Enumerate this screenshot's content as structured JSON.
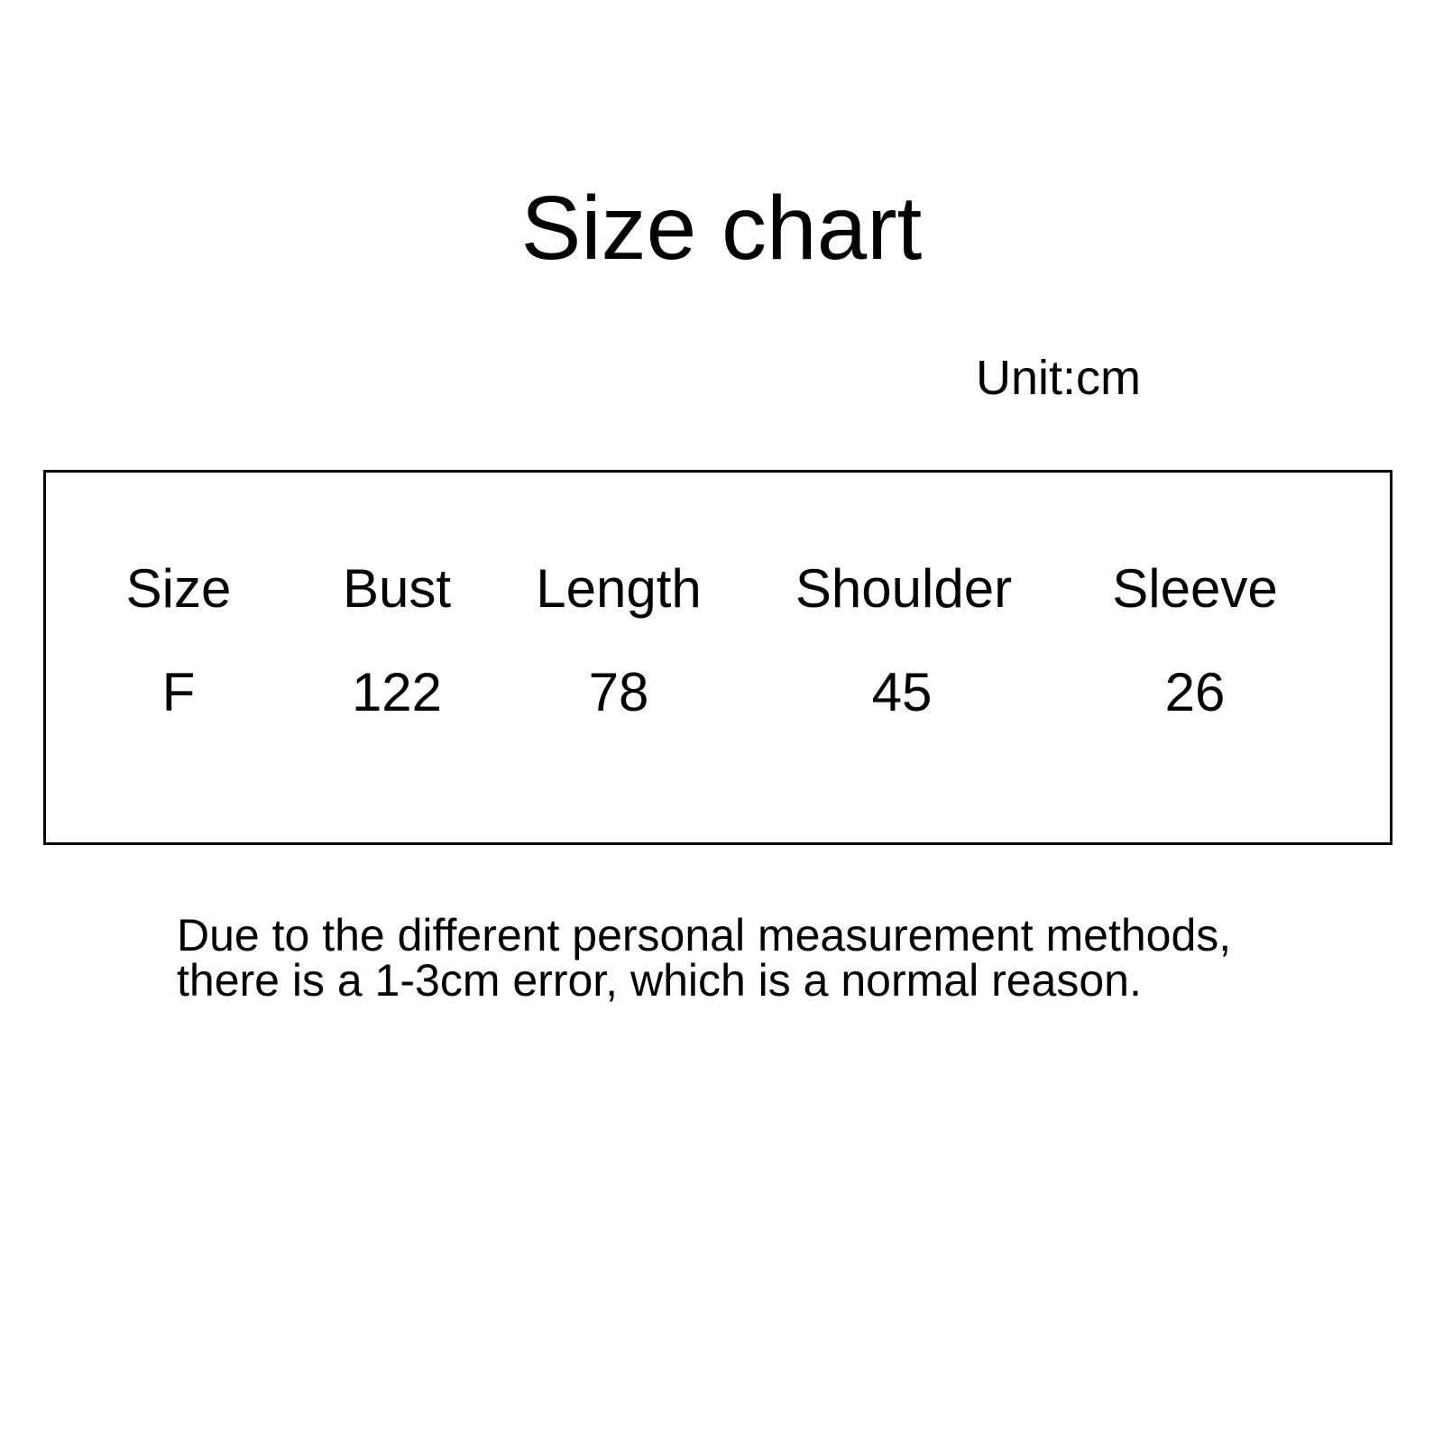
{
  "title": "Size chart",
  "unit": "Unit:cm",
  "table": {
    "headers": [
      "Size",
      "Bust",
      "Length",
      "Shoulder",
      "Sleeve"
    ],
    "rows": [
      [
        "F",
        "122",
        "78",
        "45",
        "26"
      ]
    ]
  },
  "note": {
    "line1": "Due to the different personal measurement methods,",
    "line2": "there is a 1-3cm error, which is a normal reason."
  }
}
